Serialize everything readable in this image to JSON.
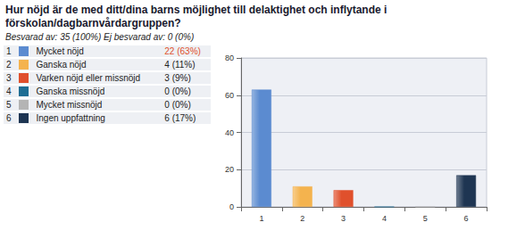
{
  "chart_data": {
    "type": "bar",
    "title": "Hur nöjd är de med ditt/dina barns möjlighet till delaktighet och inflytande i förskolan/dagbarnvårdargruppen?",
    "subtitle": "Besvarad av: 35 (100%) Ej besvarad av: 0 (0%)",
    "categories": [
      "1",
      "2",
      "3",
      "4",
      "5",
      "6"
    ],
    "labels": [
      "Mycket nöjd",
      "Ganska nöjd",
      "Varken nöjd eller missnöjd",
      "Ganska missnöjd",
      "Mycket missnöjd",
      "Ingen uppfattning"
    ],
    "counts": [
      22,
      4,
      3,
      0,
      0,
      6
    ],
    "count_labels": [
      "22 (63%)",
      "4 (11%)",
      "3 (9%)",
      "0 (0%)",
      "0 (0%)",
      "6 (17%)"
    ],
    "values": [
      63,
      11,
      9,
      0,
      0,
      17
    ],
    "colors": [
      "#5b8bd0",
      "#f4b34e",
      "#e0502c",
      "#1f6e94",
      "#b4b4b4",
      "#1e3552"
    ],
    "ylim": [
      0,
      80
    ],
    "yticks": [
      0,
      20,
      40,
      60,
      80
    ],
    "grid": true
  }
}
